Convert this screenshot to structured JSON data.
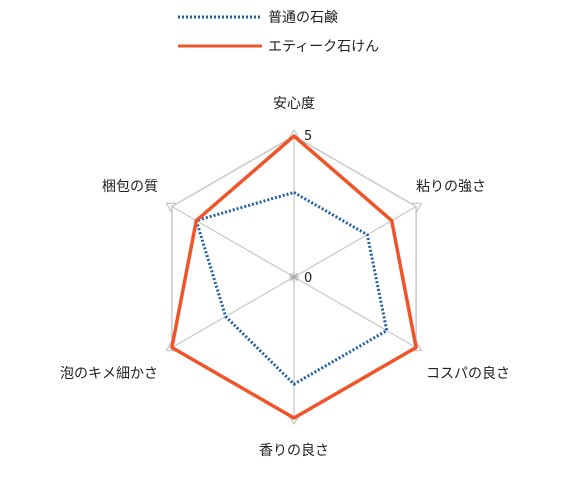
{
  "chart_data": {
    "type": "radar",
    "axes": [
      "安心度",
      "粘りの強さ",
      "コスパの良さ",
      "香りの良さ",
      "泡のキメ細かさ",
      "梱包の質"
    ],
    "range": [
      0,
      5
    ],
    "ticks": [
      0,
      5
    ],
    "grid": true,
    "legend_position": "top",
    "series": [
      {
        "name": "普通の石鹸",
        "values": [
          3,
          3,
          3.8,
          3.8,
          2.8,
          4
        ],
        "color": "#1f5fa8",
        "style": "dotted"
      },
      {
        "name": "エティーク石けん",
        "values": [
          5,
          4,
          5,
          5,
          5,
          4
        ],
        "color": "#f0552a",
        "style": "solid"
      }
    ]
  }
}
